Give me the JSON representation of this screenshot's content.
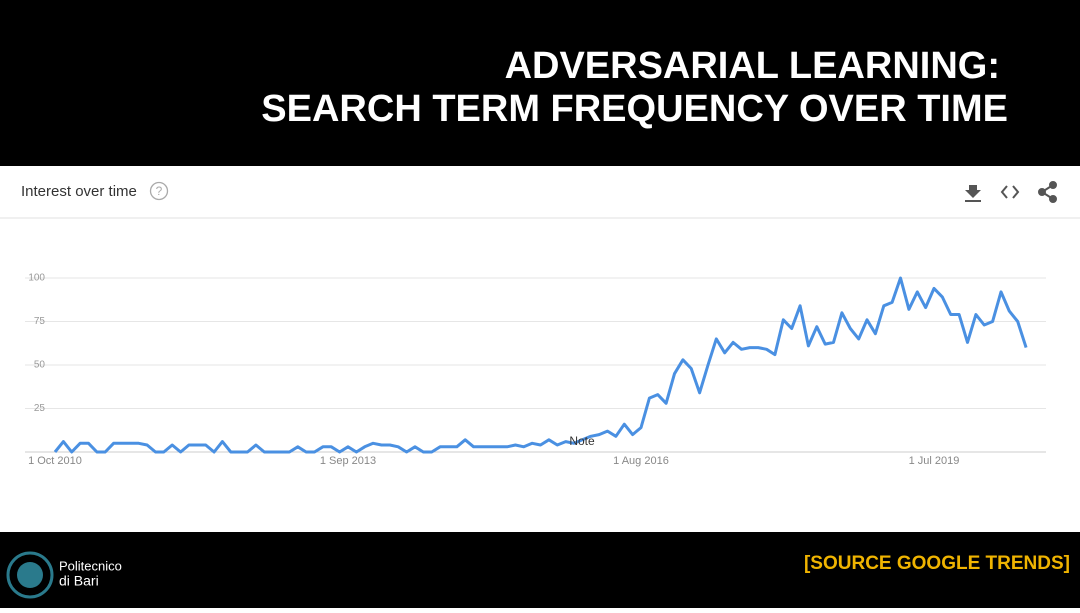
{
  "slide": {
    "title_lines": [
      "ADVERSARIAL LEARNING:",
      "SEARCH TERM FREQUENCY OVER TIME"
    ],
    "source": "[SOURCE GOOGLE TRENDS]",
    "logo_lines": [
      "Politecnico",
      "di Bari"
    ]
  },
  "chart_data": {
    "type": "line",
    "title": "Interest over time",
    "annotation": "Note",
    "categories": [
      "1 Oct 2010",
      null,
      null,
      null,
      null,
      null,
      null,
      null,
      null,
      null,
      null,
      null,
      null,
      null,
      null,
      null,
      null,
      null,
      null,
      null,
      null,
      null,
      null,
      null,
      null,
      null,
      null,
      null,
      null,
      null,
      null,
      null,
      null,
      null,
      null,
      "1 Sep 2013",
      null,
      null,
      null,
      null,
      null,
      null,
      null,
      null,
      null,
      null,
      null,
      null,
      null,
      null,
      null,
      null,
      null,
      null,
      null,
      null,
      null,
      null,
      null,
      null,
      null,
      null,
      null,
      null,
      null,
      null,
      null,
      null,
      null,
      null,
      "1 Aug 2016",
      null,
      null,
      null,
      null,
      null,
      null,
      null,
      null,
      null,
      null,
      null,
      null,
      null,
      null,
      null,
      null,
      null,
      null,
      null,
      null,
      null,
      null,
      null,
      null,
      null,
      null,
      null,
      null,
      null,
      null,
      null,
      null,
      null,
      null,
      "1 Jul 2019",
      null,
      null,
      null,
      null,
      null,
      null,
      null,
      null,
      null,
      null,
      null
    ],
    "series": [
      {
        "name": "adversarial learning",
        "color": "#4a90e2",
        "values": [
          0,
          6,
          0,
          5,
          5,
          0,
          0,
          5,
          5,
          5,
          5,
          4,
          0,
          0,
          4,
          0,
          4,
          4,
          4,
          0,
          6,
          0,
          0,
          0,
          4,
          0,
          0,
          0,
          0,
          3,
          0,
          0,
          3,
          3,
          0,
          3,
          0,
          3,
          5,
          4,
          4,
          3,
          0,
          3,
          0,
          0,
          3,
          3,
          3,
          7,
          3,
          3,
          3,
          3,
          3,
          4,
          3,
          5,
          4,
          7,
          4,
          6,
          5,
          7,
          9,
          10,
          12,
          9,
          16,
          10,
          14,
          31,
          33,
          28,
          45,
          53,
          48,
          34,
          50,
          65,
          57,
          63,
          59,
          60,
          60,
          59,
          56,
          76,
          71,
          84,
          61,
          72,
          62,
          63,
          80,
          71,
          65,
          76,
          68,
          84,
          86,
          100,
          82,
          92,
          83,
          94,
          89,
          79,
          79,
          63,
          79,
          73,
          75,
          92,
          81,
          75,
          60
        ]
      }
    ],
    "ylim": [
      0,
      100
    ],
    "yticks": [
      25,
      50,
      75,
      100
    ],
    "grid": true
  }
}
